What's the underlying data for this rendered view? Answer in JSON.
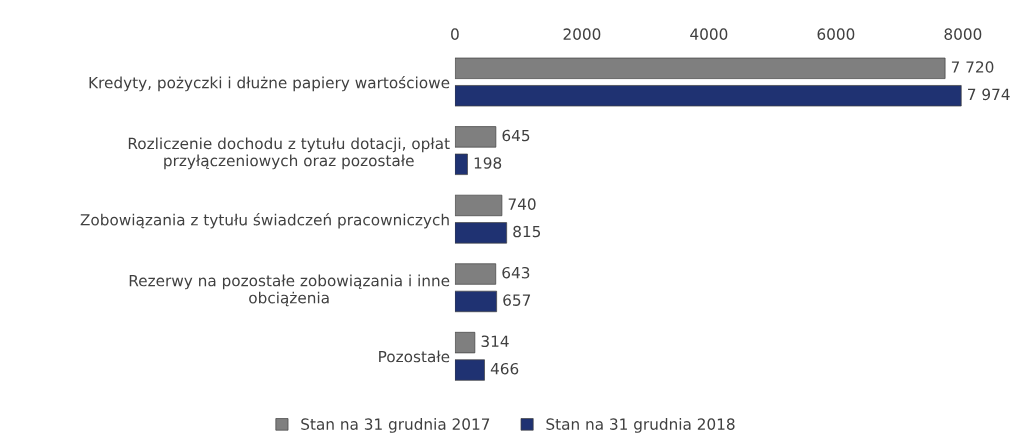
{
  "chart_data": {
    "type": "bar",
    "orientation": "horizontal",
    "categories": [
      "Kredyty, pożyczki i dłużne papiery wartościowe",
      "Rozliczenie dochodu z tytułu dotacji, opłat\nprzyłączeniowych oraz pozostałe",
      "Zobowiązania z tytułu świadczeń pracowniczych",
      "Rezerwy na pozostałe zobowiązania i inne\nobciążenia",
      "Pozostałe"
    ],
    "series": [
      {
        "name": "Stan na 31 grudnia 2017",
        "color": "#7f7f7f",
        "values": [
          7720,
          645,
          740,
          643,
          314
        ],
        "value_labels": [
          "7 720",
          "645",
          "740",
          "643",
          "314"
        ]
      },
      {
        "name": "Stan na 31 grudnia 2018",
        "color": "#1f3272",
        "values": [
          7974,
          198,
          815,
          657,
          466
        ],
        "value_labels": [
          "7 974",
          "198",
          "815",
          "657",
          "466"
        ]
      }
    ],
    "xlim": [
      0,
      8000
    ],
    "xticks": [
      0,
      2000,
      4000,
      6000,
      8000
    ],
    "grid": false,
    "legend": "bottom"
  }
}
